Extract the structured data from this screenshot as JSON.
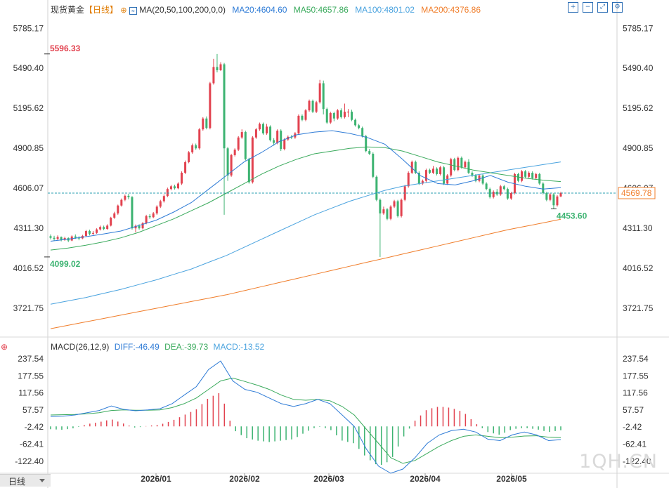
{
  "header": {
    "symbol": "现货黄金",
    "period": "【日线】",
    "ma_label": "MA(20,50,100,200,0,0)",
    "ma20": "MA20:4604.60",
    "ma50": "MA50:4657.86",
    "ma100": "MA100:4801.02",
    "ma200": "MA200:4376.86",
    "macd_label": "MACD(26,12,9)",
    "diff": "DIFF:-46.49",
    "dea": "DEA:-39.73",
    "macd": "MACD:-13.52"
  },
  "watermark": "1QH.CN",
  "tab_label": "日线",
  "colors": {
    "up": "#e2424f",
    "down": "#3cb371",
    "ma20": "#2e7bd6",
    "ma50": "#3aaa5c",
    "ma100": "#4aa3df",
    "ma200": "#f07d2a",
    "price_line": "#2a9fb0"
  },
  "tools": [
    "zoom-in-icon",
    "zoom-out-icon",
    "expand-icon",
    "settings-icon"
  ],
  "chart_data": [
    {
      "type": "candlestick",
      "title": "现货黄金【日线】",
      "y_ticks": [
        5785.17,
        5490.4,
        5195.62,
        4900.85,
        4606.07,
        4311.3,
        4016.52,
        3721.75
      ],
      "ylim": [
        3560,
        5880
      ],
      "x_ticks": [
        "2026/01",
        "2026/02",
        "2026/03",
        "2026/04",
        "2026/05"
      ],
      "current_price": 4569.78,
      "annotations": [
        {
          "label": "5596.33",
          "value": 5596.33,
          "kind": "high"
        },
        {
          "label": "4099.02",
          "value": 4099.02,
          "kind": "low"
        },
        {
          "label": "4453.60",
          "value": 4453.6,
          "kind": "low"
        }
      ],
      "candles": [
        [
          4252,
          4240,
          4228,
          4265
        ],
        [
          4240,
          4232,
          4220,
          4255
        ],
        [
          4232,
          4246,
          4222,
          4258
        ],
        [
          4246,
          4226,
          4214,
          4250
        ],
        [
          4226,
          4238,
          4218,
          4248
        ],
        [
          4238,
          4220,
          4208,
          4244
        ],
        [
          4220,
          4250,
          4215,
          4258
        ],
        [
          4250,
          4240,
          4232,
          4265
        ],
        [
          4240,
          4236,
          4222,
          4252
        ],
        [
          4236,
          4254,
          4230,
          4262
        ],
        [
          4254,
          4290,
          4248,
          4298
        ],
        [
          4290,
          4270,
          4258,
          4300
        ],
        [
          4270,
          4276,
          4262,
          4290
        ],
        [
          4276,
          4302,
          4270,
          4310
        ],
        [
          4302,
          4320,
          4294,
          4330
        ],
        [
          4320,
          4305,
          4296,
          4330
        ],
        [
          4305,
          4330,
          4300,
          4340
        ],
        [
          4330,
          4388,
          4324,
          4395
        ],
        [
          4388,
          4420,
          4380,
          4432
        ],
        [
          4420,
          4478,
          4410,
          4485
        ],
        [
          4478,
          4520,
          4470,
          4530
        ],
        [
          4520,
          4550,
          4510,
          4560
        ],
        [
          4550,
          4540,
          4524,
          4565
        ],
        [
          4540,
          4310,
          4300,
          4548
        ],
        [
          4310,
          4328,
          4280,
          4338
        ],
        [
          4328,
          4310,
          4300,
          4340
        ],
        [
          4310,
          4348,
          4302,
          4356
        ],
        [
          4348,
          4400,
          4340,
          4410
        ],
        [
          4400,
          4392,
          4380,
          4415
        ],
        [
          4392,
          4420,
          4385,
          4430
        ],
        [
          4420,
          4470,
          4410,
          4480
        ],
        [
          4470,
          4510,
          4460,
          4520
        ],
        [
          4510,
          4548,
          4500,
          4560
        ],
        [
          4548,
          4600,
          4540,
          4610
        ],
        [
          4600,
          4620,
          4590,
          4630
        ],
        [
          4620,
          4605,
          4596,
          4632
        ],
        [
          4605,
          4640,
          4598,
          4650
        ],
        [
          4640,
          4720,
          4630,
          4730
        ],
        [
          4720,
          4798,
          4710,
          4810
        ],
        [
          4798,
          4870,
          4790,
          4880
        ],
        [
          4870,
          4922,
          4860,
          4935
        ],
        [
          4922,
          4900,
          4890,
          4935
        ],
        [
          4900,
          5040,
          4890,
          5050
        ],
        [
          5040,
          5120,
          5030,
          5130
        ],
        [
          5120,
          5050,
          5040,
          5135
        ],
        [
          5050,
          5380,
          5040,
          5390
        ],
        [
          5380,
          5500,
          5370,
          5560
        ],
        [
          5500,
          5476,
          5460,
          5596
        ],
        [
          5476,
          5520,
          5470,
          5535
        ],
        [
          5520,
          4900,
          4410,
          5530
        ],
        [
          4900,
          4700,
          4660,
          4910
        ],
        [
          4700,
          4850,
          4690,
          4860
        ],
        [
          4850,
          4890,
          4840,
          4900
        ],
        [
          4890,
          4980,
          4880,
          4990
        ],
        [
          4980,
          5020,
          4970,
          5040
        ],
        [
          5020,
          4820,
          4810,
          5030
        ],
        [
          4820,
          4650,
          4640,
          4830
        ],
        [
          4650,
          4980,
          4640,
          4990
        ],
        [
          4980,
          5040,
          4970,
          5050
        ],
        [
          5040,
          5080,
          5030,
          5090
        ],
        [
          5080,
          5010,
          5000,
          5090
        ],
        [
          5010,
          5060,
          5000,
          5080
        ],
        [
          5060,
          4960,
          4950,
          5070
        ],
        [
          4960,
          4940,
          4920,
          4975
        ],
        [
          4940,
          5030,
          4930,
          5040
        ],
        [
          5030,
          4895,
          4880,
          5040
        ],
        [
          4895,
          4965,
          4885,
          4975
        ],
        [
          4965,
          4985,
          4955,
          4995
        ],
        [
          4985,
          4980,
          4968,
          4998
        ],
        [
          4980,
          5010,
          4970,
          5020
        ],
        [
          5010,
          5140,
          5000,
          5150
        ],
        [
          5140,
          5110,
          5100,
          5150
        ],
        [
          5110,
          5180,
          5100,
          5190
        ],
        [
          5180,
          5250,
          5170,
          5260
        ],
        [
          5250,
          5170,
          5160,
          5260
        ],
        [
          5170,
          5240,
          5160,
          5250
        ],
        [
          5240,
          5380,
          5230,
          5405
        ],
        [
          5380,
          5190,
          5150,
          5400
        ],
        [
          5190,
          5090,
          5080,
          5200
        ],
        [
          5090,
          5160,
          5080,
          5170
        ],
        [
          5160,
          5120,
          5100,
          5170
        ],
        [
          5120,
          5180,
          5110,
          5190
        ],
        [
          5180,
          5130,
          5120,
          5195
        ],
        [
          5130,
          5170,
          5120,
          5230
        ],
        [
          5170,
          5170,
          5130,
          5190
        ],
        [
          5170,
          5110,
          5100,
          5185
        ],
        [
          5110,
          5070,
          5060,
          5120
        ],
        [
          5070,
          5050,
          5040,
          5080
        ],
        [
          5050,
          4990,
          4980,
          5060
        ],
        [
          4990,
          4880,
          4870,
          5000
        ],
        [
          4880,
          4860,
          4850,
          4895
        ],
        [
          4860,
          4690,
          4680,
          4870
        ],
        [
          4690,
          4520,
          4510,
          4700
        ],
        [
          4520,
          4420,
          4099,
          4530
        ],
        [
          4420,
          4450,
          4410,
          4470
        ],
        [
          4450,
          4380,
          4370,
          4460
        ],
        [
          4380,
          4470,
          4370,
          4480
        ],
        [
          4470,
          4510,
          4460,
          4520
        ],
        [
          4510,
          4400,
          4390,
          4520
        ],
        [
          4400,
          4520,
          4390,
          4530
        ],
        [
          4520,
          4620,
          4510,
          4630
        ],
        [
          4620,
          4720,
          4610,
          4730
        ],
        [
          4720,
          4800,
          4710,
          4810
        ],
        [
          4800,
          4720,
          4710,
          4810
        ],
        [
          4720,
          4640,
          4630,
          4730
        ],
        [
          4640,
          4660,
          4630,
          4670
        ],
        [
          4660,
          4740,
          4650,
          4750
        ],
        [
          4740,
          4720,
          4710,
          4750
        ],
        [
          4720,
          4750,
          4710,
          4770
        ],
        [
          4750,
          4710,
          4700,
          4760
        ],
        [
          4710,
          4760,
          4700,
          4770
        ],
        [
          4760,
          4640,
          4630,
          4770
        ],
        [
          4640,
          4700,
          4630,
          4710
        ],
        [
          4700,
          4820,
          4690,
          4830
        ],
        [
          4820,
          4740,
          4730,
          4830
        ],
        [
          4740,
          4830,
          4730,
          4840
        ],
        [
          4830,
          4760,
          4750,
          4840
        ],
        [
          4760,
          4800,
          4750,
          4810
        ],
        [
          4800,
          4720,
          4710,
          4820
        ],
        [
          4720,
          4700,
          4690,
          4730
        ],
        [
          4700,
          4660,
          4650,
          4710
        ],
        [
          4660,
          4700,
          4650,
          4710
        ],
        [
          4700,
          4640,
          4630,
          4710
        ],
        [
          4640,
          4600,
          4590,
          4650
        ],
        [
          4600,
          4540,
          4530,
          4610
        ],
        [
          4540,
          4580,
          4530,
          4590
        ],
        [
          4580,
          4560,
          4550,
          4600
        ],
        [
          4560,
          4620,
          4550,
          4630
        ],
        [
          4620,
          4600,
          4590,
          4630
        ],
        [
          4600,
          4530,
          4520,
          4610
        ],
        [
          4530,
          4570,
          4520,
          4580
        ],
        [
          4570,
          4710,
          4560,
          4720
        ],
        [
          4710,
          4660,
          4650,
          4720
        ],
        [
          4660,
          4730,
          4650,
          4740
        ],
        [
          4730,
          4690,
          4680,
          4740
        ],
        [
          4690,
          4720,
          4680,
          4730
        ],
        [
          4720,
          4680,
          4670,
          4730
        ],
        [
          4680,
          4710,
          4670,
          4720
        ],
        [
          4710,
          4640,
          4630,
          4720
        ],
        [
          4640,
          4570,
          4560,
          4650
        ],
        [
          4570,
          4520,
          4510,
          4580
        ],
        [
          4520,
          4560,
          4510,
          4570
        ],
        [
          4560,
          4480,
          4453.6,
          4570
        ],
        [
          4480,
          4545,
          4470,
          4555
        ],
        [
          4545,
          4570,
          4540,
          4580
        ]
      ],
      "ma20": [
        4215,
        4230,
        4248,
        4268,
        4290,
        4330,
        4370,
        4430,
        4500,
        4600,
        4700,
        4800,
        4870,
        4950,
        5000,
        5020,
        5030,
        5010,
        4980,
        4930,
        4820,
        4700,
        4640,
        4630,
        4660,
        4700,
        4650,
        4620,
        4600,
        4610
      ],
      "ma50": [
        4150,
        4165,
        4185,
        4210,
        4240,
        4280,
        4330,
        4380,
        4440,
        4500,
        4570,
        4640,
        4710,
        4770,
        4820,
        4860,
        4880,
        4900,
        4910,
        4905,
        4880,
        4840,
        4800,
        4770,
        4740,
        4720,
        4700,
        4680,
        4665,
        4655
      ],
      "ma100": [
        3750,
        3775,
        3800,
        3830,
        3860,
        3895,
        3930,
        3970,
        4010,
        4060,
        4110,
        4170,
        4230,
        4290,
        4350,
        4410,
        4460,
        4510,
        4550,
        4590,
        4620,
        4640,
        4660,
        4680,
        4700,
        4720,
        4740,
        4760,
        4780,
        4800
      ],
      "ma200": [
        3570,
        3595,
        3620,
        3645,
        3670,
        3695,
        3720,
        3745,
        3770,
        3795,
        3820,
        3850,
        3880,
        3910,
        3940,
        3970,
        4000,
        4030,
        4060,
        4090,
        4120,
        4150,
        4180,
        4210,
        4240,
        4270,
        4300,
        4325,
        4350,
        4376.86
      ]
    },
    {
      "type": "macd",
      "title": "MACD(26,12,9)",
      "y_ticks": [
        237.54,
        177.55,
        117.56,
        57.57,
        -2.42,
        -62.41,
        -122.4
      ],
      "ylim": [
        -160,
        260
      ],
      "series": [
        {
          "name": "DIFF",
          "values": [
            35,
            36,
            40,
            48,
            56,
            72,
            60,
            55,
            58,
            62,
            80,
            110,
            140,
            200,
            230,
            160,
            130,
            120,
            100,
            80,
            70,
            80,
            95,
            80,
            40,
            0,
            -80,
            -140,
            -165,
            -150,
            -110,
            -60,
            -30,
            -15,
            -10,
            -20,
            -45,
            -50,
            -30,
            -20,
            -30,
            -50,
            -46.49
          ]
        },
        {
          "name": "DEA",
          "values": [
            40,
            41,
            42,
            44,
            48,
            56,
            58,
            57,
            57,
            58,
            66,
            80,
            100,
            130,
            160,
            170,
            158,
            145,
            130,
            110,
            95,
            92,
            95,
            90,
            70,
            40,
            -10,
            -60,
            -110,
            -130,
            -120,
            -95,
            -70,
            -50,
            -35,
            -30,
            -35,
            -40,
            -38,
            -34,
            -33,
            -38,
            -39.73
          ]
        },
        {
          "name": "MACD",
          "values": [
            -10,
            -12,
            -6,
            8,
            15,
            25,
            10,
            -5,
            2,
            6,
            20,
            40,
            60,
            100,
            120,
            -10,
            -40,
            -50,
            -55,
            -50,
            -45,
            -20,
            0,
            -10,
            -50,
            -60,
            -110,
            -140,
            -120,
            -40,
            20,
            60,
            70,
            65,
            50,
            10,
            -20,
            -30,
            -10,
            -5,
            -10,
            -20,
            -13.52
          ]
        }
      ]
    }
  ]
}
